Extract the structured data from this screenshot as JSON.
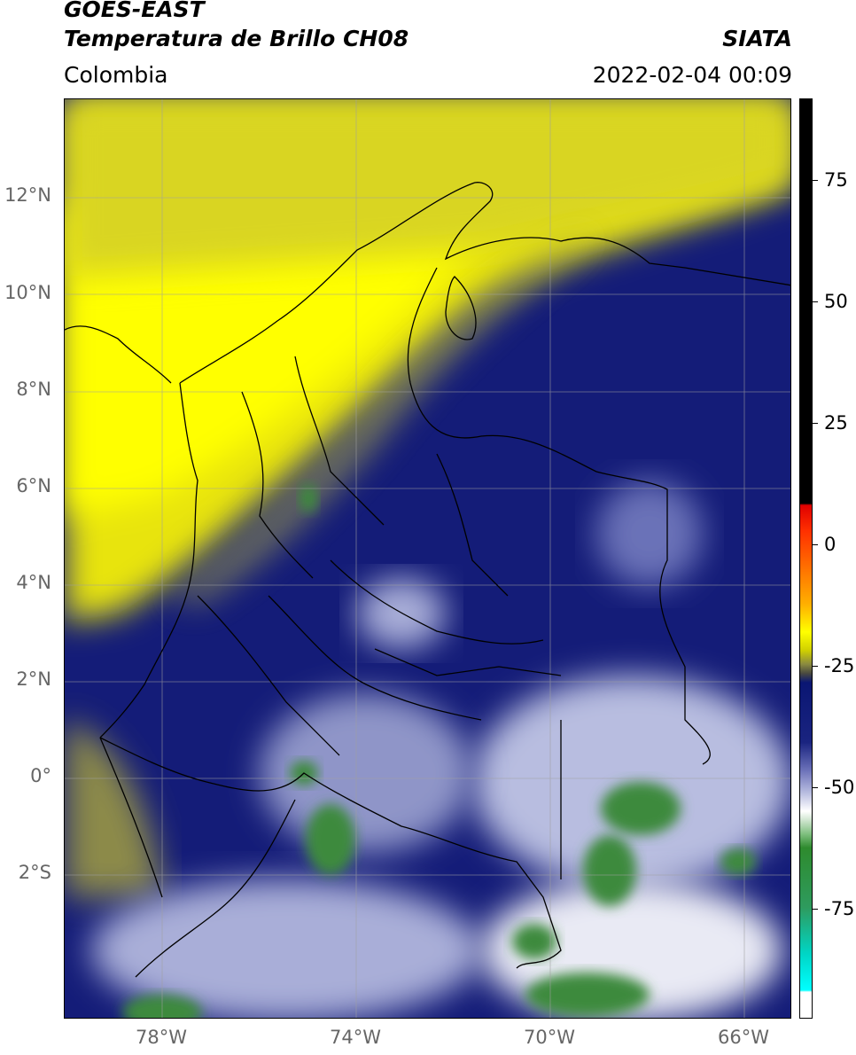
{
  "header": {
    "title_line1": "GOES-EAST",
    "title_line2": "Temperatura de Brillo CH08",
    "region": "Colombia",
    "source": "SIATA",
    "datetime": "2022-02-04 00:09"
  },
  "map": {
    "lat_labels": [
      "12°N",
      "10°N",
      "8°N",
      "6°N",
      "4°N",
      "2°N",
      "0°",
      "2°S"
    ],
    "lon_labels": [
      "78°W",
      "74°W",
      "70°W",
      "66°W"
    ],
    "colors": {
      "yellow": "#f4f000",
      "olive": "#a8a84a",
      "navy": "#0a1673",
      "lavender": "#b8bde0",
      "white": "#f6f6fa",
      "green": "#3c8a3c"
    }
  },
  "colorbar": {
    "tick_labels": [
      "75",
      "50",
      "25",
      "0",
      "-25",
      "-50",
      "-75"
    ],
    "colors": [
      "#000000",
      "#ff0000",
      "#ff8c00",
      "#ffff00",
      "#6b6b4a",
      "#0a1673",
      "#ffffff",
      "#2e8b2e",
      "#00e5e5",
      "#ffffff"
    ]
  }
}
